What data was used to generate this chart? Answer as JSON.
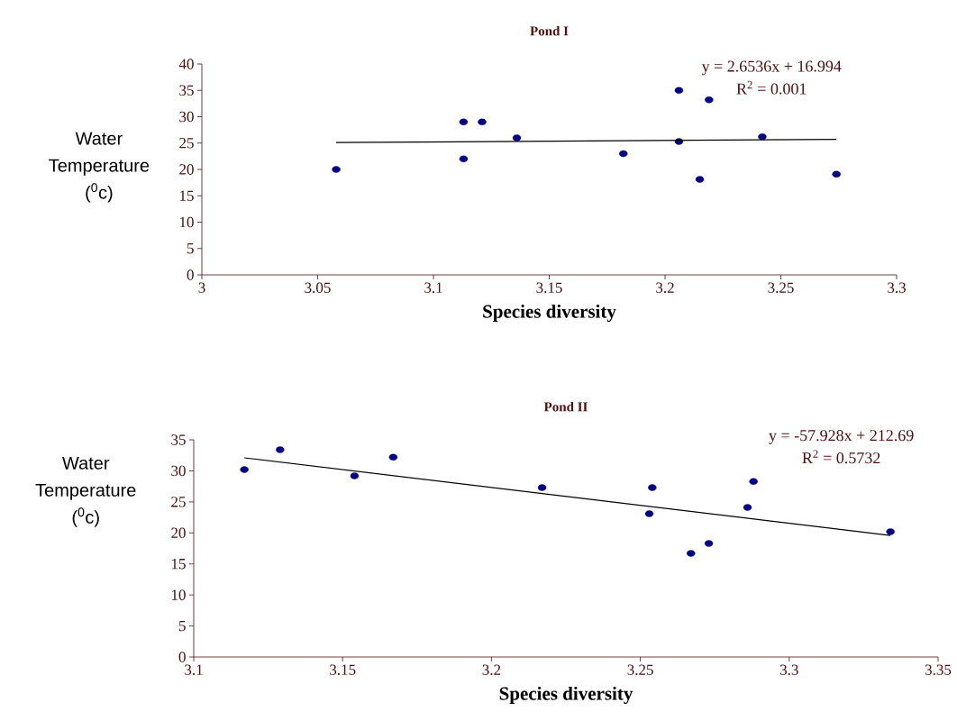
{
  "chart_data": [
    {
      "type": "scatter",
      "title": "Pond I",
      "xlabel": "Species diversity",
      "ylabel": "Water Temperature ($^{0}$c)",
      "xlim": [
        3,
        3.3
      ],
      "xticks": [
        3,
        3.05,
        3.1,
        3.15,
        3.2,
        3.25,
        3.3
      ],
      "ylim": [
        0,
        40
      ],
      "yticks": [
        0,
        5,
        10,
        15,
        20,
        25,
        30,
        35,
        40
      ],
      "grid": false,
      "marker": "circle",
      "annotations": [
        "y = 2.6536x + 16.994",
        "R$^{2}$ = 0.001"
      ],
      "series": [
        {
          "color": "#000080",
          "x": [
            3.058,
            3.113,
            3.113,
            3.121,
            3.136,
            3.182,
            3.206,
            3.206,
            3.215,
            3.219,
            3.242,
            3.274
          ],
          "values": [
            20,
            29,
            22,
            29,
            26,
            23,
            35,
            25.3,
            18.1,
            33.2,
            26.2,
            19.1
          ]
        },
        {
          "type": "line",
          "color": "#000000",
          "marker": "none",
          "line_style": "solid",
          "x": [
            3.058,
            3.274
          ],
          "values": [
            25.1,
            25.7
          ]
        }
      ]
    },
    {
      "type": "scatter",
      "title": "Pond II",
      "xlabel": "Species diversity",
      "ylabel": "Water Temperature ($^{0}$c)",
      "xlim": [
        3.1,
        3.35
      ],
      "xticks": [
        3.1,
        3.15,
        3.2,
        3.25,
        3.3,
        3.35
      ],
      "ylim": [
        0,
        35
      ],
      "yticks": [
        0,
        5,
        10,
        15,
        20,
        25,
        30,
        35
      ],
      "grid": false,
      "marker": "circle",
      "annotations": [
        "y = -57.928x + 212.69",
        "R$^{2}$ = 0.5732"
      ],
      "series": [
        {
          "color": "#000080",
          "x": [
            3.117,
            3.129,
            3.154,
            3.167,
            3.217,
            3.253,
            3.254,
            3.267,
            3.273,
            3.286,
            3.288,
            3.334
          ],
          "values": [
            30.2,
            33.4,
            29.2,
            32.2,
            27.3,
            23.1,
            27.3,
            16.7,
            18.3,
            24.1,
            28.3,
            20.2
          ]
        },
        {
          "type": "line",
          "color": "#000000",
          "marker": "none",
          "line_style": "solid",
          "x": [
            3.117,
            3.334
          ],
          "values": [
            32.1,
            19.6
          ]
        }
      ]
    }
  ]
}
